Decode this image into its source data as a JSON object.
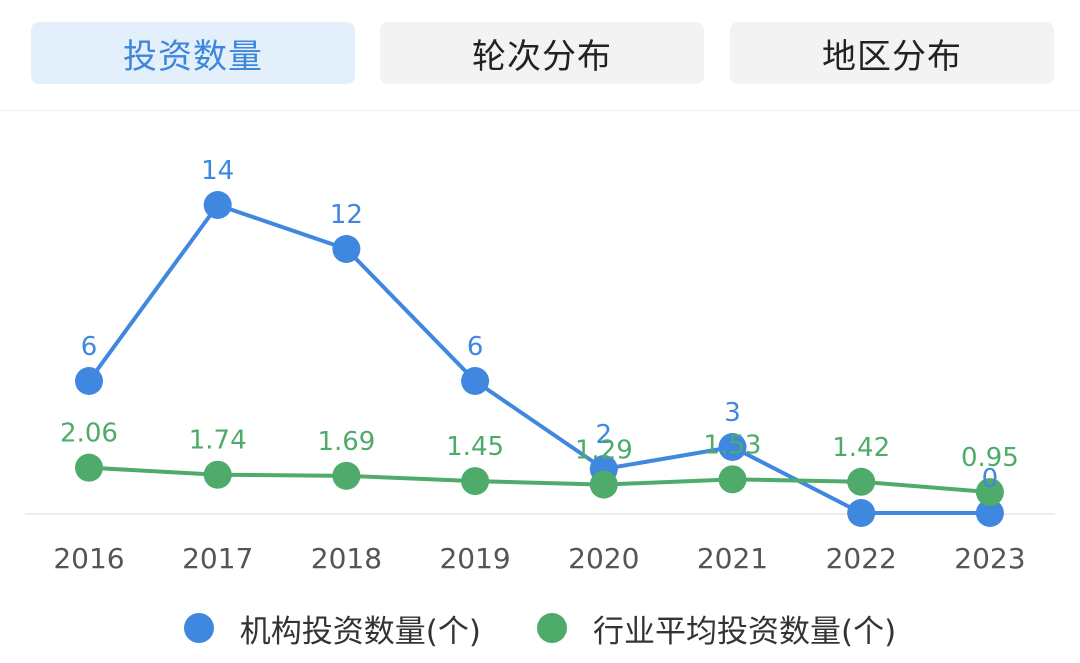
{
  "tabs": [
    {
      "label": "投资数量",
      "active": true
    },
    {
      "label": "轮次分布",
      "active": false
    },
    {
      "label": "地区分布",
      "active": false
    }
  ],
  "colors": {
    "series_1": "#3f87df",
    "series_2": "#4eab6a",
    "active_tab_bg": "#e3f0fc",
    "active_tab_text": "#3d86dc",
    "tab_bg": "#f3f3f3",
    "axis_text": "#555555"
  },
  "chart_data": {
    "type": "line",
    "x": [
      "2016",
      "2017",
      "2018",
      "2019",
      "2020",
      "2021",
      "2022",
      "2023"
    ],
    "ylim": [
      0,
      16
    ],
    "grid": false,
    "legend": "bottom",
    "series": [
      {
        "name": "机构投资数量(个)",
        "values": [
          6,
          14,
          12,
          6,
          2,
          3,
          0,
          0
        ],
        "labels": [
          "6",
          "14",
          "12",
          "6",
          "2",
          "3",
          "",
          "0"
        ]
      },
      {
        "name": "行业平均投资数量(个)",
        "values": [
          2.06,
          1.74,
          1.69,
          1.45,
          1.29,
          1.53,
          1.42,
          0.95
        ],
        "labels": [
          "2.06",
          "1.74",
          "1.69",
          "1.45",
          "1.29",
          "1.53",
          "1.42",
          "0.95"
        ]
      }
    ]
  }
}
